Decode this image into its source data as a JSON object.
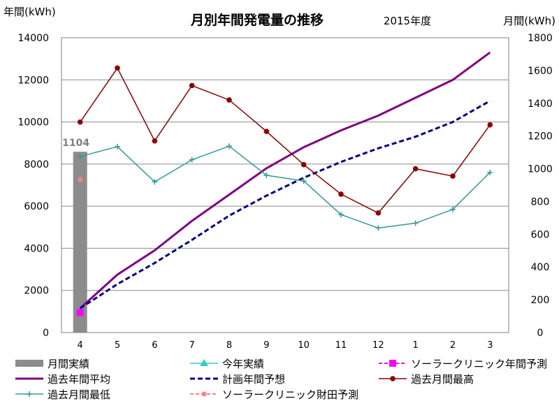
{
  "chart_data": {
    "type": "line",
    "title": "月別年間発電量の推移",
    "subtitle": "2015年度",
    "ylabel_left": "年間(kWh)",
    "ylabel_right": "月間(kWh)",
    "categories": [
      "4",
      "5",
      "6",
      "7",
      "8",
      "9",
      "10",
      "11",
      "12",
      "1",
      "2",
      "3"
    ],
    "ylim_left": [
      0,
      14000
    ],
    "ylim_right": [
      0,
      1800
    ],
    "yticks_left": [
      0,
      2000,
      4000,
      6000,
      8000,
      10000,
      12000,
      14000
    ],
    "yticks_right": [
      0,
      200,
      400,
      600,
      800,
      1000,
      1200,
      1400,
      1600,
      1800
    ],
    "grid": true,
    "series": [
      {
        "name": "月間実績",
        "kind": "bar",
        "axis": "right",
        "color": "#8c8c8c",
        "values": [
          1104,
          null,
          null,
          null,
          null,
          null,
          null,
          null,
          null,
          null,
          null,
          null
        ],
        "label": "1104"
      },
      {
        "name": "今年実績",
        "kind": "line-marker",
        "axis": "left",
        "color": "#33cccc",
        "values": [
          950,
          null,
          null,
          null,
          null,
          null,
          null,
          null,
          null,
          null,
          null,
          null
        ]
      },
      {
        "name": "ソーラークリニック年間予測",
        "kind": "dashed-marker",
        "axis": "left",
        "color": "#ff00ff",
        "values": [
          950,
          null,
          null,
          null,
          null,
          null,
          null,
          null,
          null,
          null,
          null,
          null
        ]
      },
      {
        "name": "過去年間平均",
        "kind": "line",
        "axis": "left",
        "color": "#800080",
        "values": [
          1150,
          2750,
          3900,
          5300,
          6550,
          7800,
          8800,
          9600,
          10300,
          11150,
          12000,
          13300
        ]
      },
      {
        "name": "計画年間予想",
        "kind": "dashed",
        "axis": "left",
        "color": "#000080",
        "values": [
          1150,
          2300,
          3300,
          4400,
          5550,
          6500,
          7350,
          8100,
          8750,
          9300,
          10000,
          11000
        ]
      },
      {
        "name": "過去月間最高",
        "kind": "line-marker",
        "axis": "right",
        "color": "#8b0000",
        "values": [
          1285,
          1615,
          1170,
          1508,
          1420,
          1228,
          1025,
          845,
          730,
          1000,
          955,
          1268
        ]
      },
      {
        "name": "過去月間最低",
        "kind": "line-plus",
        "axis": "right",
        "color": "#339999",
        "values": [
          1075,
          1135,
          920,
          1055,
          1138,
          960,
          925,
          720,
          638,
          668,
          752,
          978
        ]
      },
      {
        "name": "ソーラークリニック財田予測",
        "kind": "dashed-marker",
        "axis": "right",
        "color": "#ff8080",
        "values": [
          935,
          null,
          null,
          null,
          null,
          null,
          null,
          null,
          null,
          null,
          null,
          null
        ]
      }
    ]
  }
}
